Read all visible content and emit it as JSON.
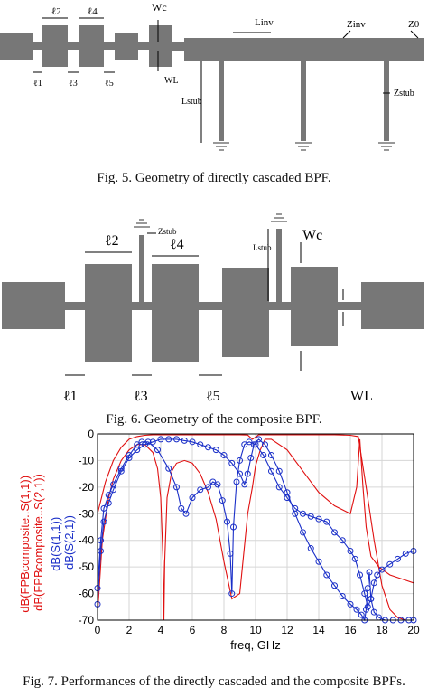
{
  "fig5": {
    "caption": "Fig. 5. Geometry of directly cascaded BPF.",
    "labels": {
      "wc": "Wc",
      "wl": "WL",
      "linv": "Linv",
      "zinv": "Zinv",
      "z0": "Z0",
      "lstub": "Lstub",
      "zstub": "Zstub",
      "l1": "ℓ1",
      "l2": "ℓ2",
      "l3": "ℓ3",
      "l4": "ℓ4",
      "l5": "ℓ5"
    }
  },
  "fig6": {
    "caption": "Fig. 6. Geometry of the composite BPF.",
    "labels": {
      "wc": "Wc",
      "wl": "WL",
      "lstub": "Lstub",
      "zstub": "Zstub",
      "l1": "ℓ1",
      "l2": "ℓ2",
      "l3": "ℓ3",
      "l4": "ℓ4",
      "l5": "ℓ5"
    }
  },
  "fig7": {
    "caption": "Fig. 7. Performances of the directly cascaded and the composite BPFs.",
    "xlabel": "freq, GHz",
    "ylabel_red": "dB(FPBcomposite..S(1,1))\ndB(FPBcomposite..S(2,1))",
    "ylabel_blue": "dB(S(1,1))\ndB(S(2,1))"
  },
  "chart_data": {
    "type": "line",
    "xlim": [
      0,
      20
    ],
    "ylim": [
      -70,
      0
    ],
    "x_ticks": [
      0,
      2,
      4,
      6,
      8,
      10,
      12,
      14,
      16,
      18,
      20
    ],
    "y_ticks": [
      0,
      -10,
      -20,
      -30,
      -40,
      -50,
      -60,
      -70
    ],
    "grid": true,
    "colors": {
      "composite": "#e01010",
      "cascaded": "#1a2fc8"
    },
    "series": [
      {
        "name": "dB(FPBcomposite..S(1,1))",
        "color": "#e01010",
        "marker": "none",
        "x": [
          0,
          0.3,
          0.7,
          1.0,
          1.5,
          2.0,
          2.5,
          3.0,
          3.5,
          3.8,
          4.0,
          4.15,
          4.2,
          4.25,
          4.4,
          4.7,
          5.0,
          5.5,
          6.0,
          6.5,
          7.0,
          7.5,
          8.0,
          8.5,
          9.0,
          9.5,
          9.8,
          10.0,
          10.3,
          10.6,
          11.0,
          12.0,
          13.0,
          14.0,
          15.0,
          16.0,
          16.4,
          16.6,
          16.8,
          17.0,
          17.3,
          17.8,
          18.5,
          19.5,
          20.0
        ],
        "y": [
          -68,
          -40,
          -24,
          -17,
          -10,
          -6,
          -4,
          -4,
          -7,
          -13,
          -24,
          -48,
          -70,
          -48,
          -24,
          -14,
          -11,
          -10,
          -11,
          -15,
          -22,
          -32,
          -48,
          -62,
          -60,
          -30,
          -20,
          -12,
          -6,
          -2,
          -2,
          -6,
          -14,
          -22,
          -27,
          -30,
          -20,
          -2,
          -20,
          -35,
          -46,
          -50,
          -53,
          -55,
          -56
        ]
      },
      {
        "name": "dB(FPBcomposite..S(2,1))",
        "color": "#e01010",
        "marker": "none",
        "x": [
          0,
          0.5,
          1.0,
          1.5,
          2.0,
          2.5,
          3.0,
          3.5,
          4.0,
          5.0,
          6.0,
          7.0,
          8.0,
          9.0,
          9.5,
          9.8,
          10.2,
          11.0,
          12.0,
          13.0,
          14.0,
          15.0,
          15.5,
          16.0,
          16.5,
          17.0,
          17.5,
          18.0,
          18.5,
          19.0,
          19.5,
          20.0
        ],
        "y": [
          -30,
          -18,
          -10,
          -5,
          -2,
          -1,
          -0.5,
          -0.3,
          -0.3,
          -0.3,
          -0.3,
          -0.3,
          -0.3,
          -0.3,
          -0.4,
          -2,
          -0.3,
          -0.3,
          -0.3,
          -0.3,
          -0.3,
          -0.3,
          -0.4,
          -0.5,
          -1,
          -20,
          -40,
          -57,
          -66,
          -69,
          -70,
          -70
        ]
      },
      {
        "name": "dB(S(1,1))",
        "color": "#1a2fc8",
        "marker": "circle",
        "x": [
          0,
          0.2,
          0.4,
          0.7,
          1.0,
          1.5,
          2.0,
          2.5,
          2.8,
          3.2,
          3.8,
          4.5,
          5.0,
          5.3,
          5.6,
          6.0,
          6.5,
          7.0,
          7.3,
          7.6,
          7.9,
          8.2,
          8.4,
          8.5,
          8.6,
          8.8,
          9.0,
          9.3,
          9.6,
          10.0,
          10.5,
          11.0,
          11.5,
          12.0,
          12.5,
          13.0,
          13.5,
          14.0,
          14.5,
          15.0,
          15.5,
          16.0,
          16.3,
          16.6,
          16.9,
          17.1,
          17.3,
          17.5,
          17.7,
          18.0,
          18.5,
          19.0,
          19.5,
          20.0
        ],
        "y": [
          -58,
          -40,
          -28,
          -23,
          -19,
          -13,
          -8,
          -4,
          -3,
          -3,
          -6,
          -13,
          -20,
          -28,
          -30,
          -24,
          -21,
          -20,
          -18,
          -19,
          -25,
          -33,
          -45,
          -60,
          -35,
          -18,
          -10,
          -4,
          -3,
          -4,
          -8,
          -14,
          -20,
          -24,
          -28,
          -30,
          -31,
          -32,
          -33,
          -37,
          -40,
          -44,
          -47,
          -53,
          -60,
          -65,
          -62,
          -56,
          -53,
          -51,
          -49,
          -47,
          -45,
          -44
        ]
      },
      {
        "name": "dB(S(2,1))",
        "color": "#1a2fc8",
        "marker": "circle",
        "x": [
          0,
          0.2,
          0.4,
          0.7,
          1.0,
          1.5,
          2.0,
          2.5,
          3.0,
          3.5,
          4.0,
          4.5,
          5.0,
          5.5,
          6.0,
          6.5,
          7.0,
          7.5,
          8.0,
          8.5,
          9.0,
          9.3,
          9.5,
          9.7,
          9.9,
          10.2,
          10.6,
          11.0,
          11.5,
          12.0,
          12.5,
          13.0,
          13.5,
          14.0,
          14.5,
          15.0,
          15.5,
          16.0,
          16.4,
          16.7,
          16.9,
          17.0,
          17.1,
          17.2,
          17.3,
          17.5,
          17.8,
          18.2,
          18.7,
          19.2,
          19.7,
          20.0
        ],
        "y": [
          -64,
          -44,
          -33,
          -26,
          -21,
          -14,
          -9,
          -6,
          -4,
          -3,
          -2,
          -2,
          -2,
          -2.5,
          -3,
          -4,
          -5,
          -6,
          -8,
          -11,
          -15,
          -19,
          -15,
          -9,
          -4,
          -2,
          -4,
          -8,
          -14,
          -22,
          -30,
          -37,
          -43,
          -48,
          -53,
          -57,
          -61,
          -64,
          -66,
          -68,
          -70,
          -66,
          -58,
          -52,
          -62,
          -67,
          -69,
          -70,
          -70,
          -70,
          -70,
          -70
        ]
      }
    ]
  }
}
